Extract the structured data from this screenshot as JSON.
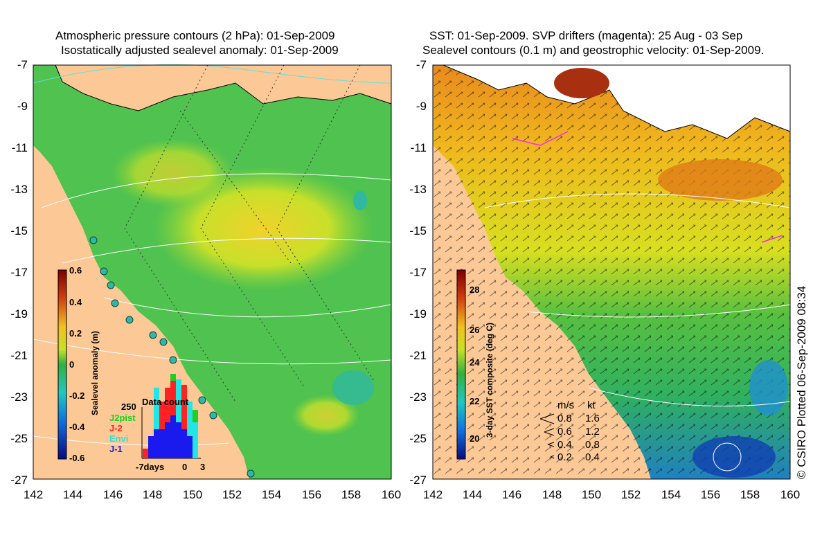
{
  "left_panel": {
    "title_line1": "Atmospheric pressure contours (2 hPa): 01-Sep-2009",
    "title_line2": "Isostatically adjusted sealevel anomaly: 01-Sep-2009",
    "colorbar_label": "Sealevel anomaly (m)",
    "colorbar_ticks": [
      "0.6",
      "0.4",
      "0.2",
      "0",
      "-0.2",
      "-0.4",
      "-0.6"
    ],
    "inset": {
      "title": "Data count",
      "ymax_label": "250",
      "legend": [
        "J2pist",
        "J-2",
        "Envi",
        "J-1"
      ],
      "legend_colors": [
        "#22cc22",
        "#ff2222",
        "#22e5e5",
        "#1a1aee"
      ],
      "xlabels": [
        "-7days",
        "0",
        "3"
      ]
    }
  },
  "right_panel": {
    "title_line1": "SST: 01-Sep-2009. SVP drifters (magenta): 25 Aug - 03 Sep",
    "title_line2": "Sealevel contours (0.1 m) and geostrophic velocity: 01-Sep-2009.",
    "colorbar_label": "3-day SST composite (deg C)",
    "colorbar_ticks": [
      "28",
      "26",
      "24",
      "22",
      "20"
    ],
    "speed_legend": {
      "header_ms": "m/s",
      "header_kt": "kt",
      "rows": [
        {
          "ms": "0.8",
          "kt": "1.6"
        },
        {
          "ms": "0.6",
          "kt": "1.2"
        },
        {
          "ms": "0.4",
          "kt": "0.8"
        },
        {
          "ms": "0.2",
          "kt": "0.4"
        }
      ]
    }
  },
  "axes": {
    "y_ticks": [
      "-7",
      "-9",
      "-11",
      "-13",
      "-15",
      "-17",
      "-19",
      "-21",
      "-23",
      "-25",
      "-27"
    ],
    "x_ticks": [
      "142",
      "144",
      "146",
      "148",
      "150",
      "152",
      "154",
      "156",
      "158",
      "160"
    ]
  },
  "credit": "© CSIRO Plotted 06-Sep-2009 08:34",
  "colors": {
    "land": "#fbc896",
    "sla_fill": "#4fc24f",
    "sst_fill": "#e6d020"
  }
}
